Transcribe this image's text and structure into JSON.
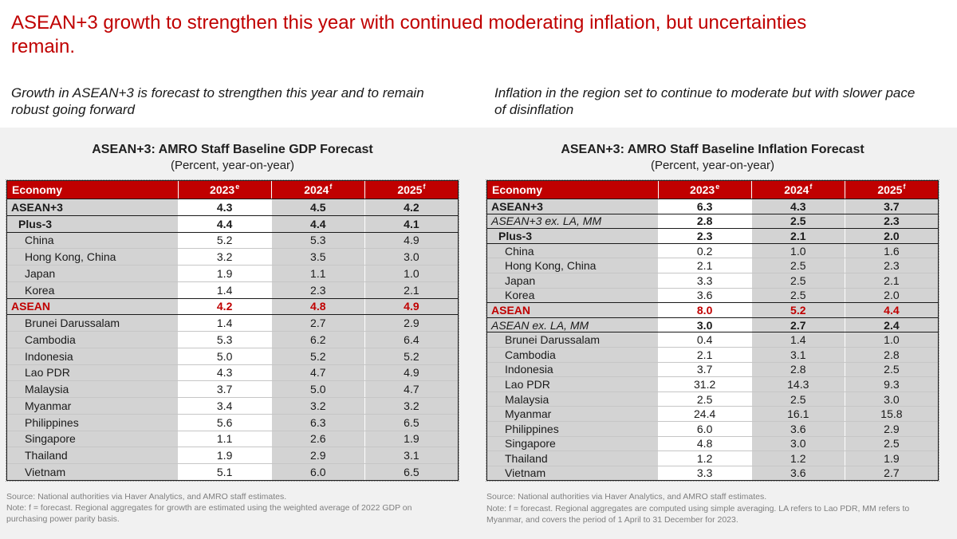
{
  "page": {
    "title": "ASEAN+3 growth to strengthen this year with continued moderating inflation, but uncertainties remain.",
    "accent_color": "#C00000",
    "band_color": "#F1F1F1",
    "cell_gray": "#D3D3D3"
  },
  "panels": [
    {
      "subtitle": "Growth in ASEAN+3 is forecast to strengthen this year and to remain robust going forward",
      "table_title": "ASEAN+3: AMRO Staff Baseline GDP Forecast",
      "table_subtitle": "(Percent, year-on-year)",
      "source": "Source: National authorities via Haver Analytics, and AMRO staff estimates.",
      "note": "Note: f = forecast. Regional aggregates for growth are estimated using the weighted average of 2022 GDP on purchasing power parity basis."
    },
    {
      "subtitle": "Inflation in the region set to continue to moderate but with slower pace of disinflation",
      "table_title": "ASEAN+3: AMRO Staff Baseline Inflation Forecast",
      "table_subtitle": "(Percent, year-on-year)",
      "source": "Source: National authorities via Haver Analytics, and AMRO staff estimates.",
      "note": "Note: f = forecast. Regional aggregates are computed using simple averaging. LA refers to Lao PDR, MM refers to Myanmar, and covers the period of 1 April to 31 December for 2023."
    }
  ],
  "tables": [
    {
      "id": "gdp-forecast",
      "columns": [
        {
          "label": "Economy",
          "sup": ""
        },
        {
          "label": "2023",
          "sup": "e"
        },
        {
          "label": "2024",
          "sup": "f"
        },
        {
          "label": "2025",
          "sup": "f"
        }
      ],
      "rows": [
        {
          "label": "ASEAN+3",
          "values": [
            "4.3",
            "4.5",
            "4.2"
          ],
          "style": "bold",
          "indent": 0,
          "sep": true
        },
        {
          "label": "Plus-3",
          "values": [
            "4.4",
            "4.4",
            "4.1"
          ],
          "style": "bold",
          "indent": 1,
          "sep": true
        },
        {
          "label": "China",
          "values": [
            "5.2",
            "5.3",
            "4.9"
          ],
          "style": "plain",
          "indent": 2,
          "sep": true
        },
        {
          "label": "Hong Kong, China",
          "values": [
            "3.2",
            "3.5",
            "3.0"
          ],
          "style": "plain",
          "indent": 2,
          "sep": false
        },
        {
          "label": "Japan",
          "values": [
            "1.9",
            "1.1",
            "1.0"
          ],
          "style": "plain",
          "indent": 2,
          "sep": false
        },
        {
          "label": "Korea",
          "values": [
            "1.4",
            "2.3",
            "2.1"
          ],
          "style": "plain",
          "indent": 2,
          "sep": false
        },
        {
          "label": "ASEAN",
          "values": [
            "4.2",
            "4.8",
            "4.9"
          ],
          "style": "red",
          "indent": 0,
          "sep": true
        },
        {
          "label": "Brunei Darussalam",
          "values": [
            "1.4",
            "2.7",
            "2.9"
          ],
          "style": "plain",
          "indent": 2,
          "sep": true
        },
        {
          "label": "Cambodia",
          "values": [
            "5.3",
            "6.2",
            "6.4"
          ],
          "style": "plain",
          "indent": 2,
          "sep": false
        },
        {
          "label": "Indonesia",
          "values": [
            "5.0",
            "5.2",
            "5.2"
          ],
          "style": "plain",
          "indent": 2,
          "sep": false
        },
        {
          "label": "Lao PDR",
          "values": [
            "4.3",
            "4.7",
            "4.9"
          ],
          "style": "plain",
          "indent": 2,
          "sep": false
        },
        {
          "label": "Malaysia",
          "values": [
            "3.7",
            "5.0",
            "4.7"
          ],
          "style": "plain",
          "indent": 2,
          "sep": false
        },
        {
          "label": "Myanmar",
          "values": [
            "3.4",
            "3.2",
            "3.2"
          ],
          "style": "plain",
          "indent": 2,
          "sep": false
        },
        {
          "label": "Philippines",
          "values": [
            "5.6",
            "6.3",
            "6.5"
          ],
          "style": "plain",
          "indent": 2,
          "sep": false
        },
        {
          "label": "Singapore",
          "values": [
            "1.1",
            "2.6",
            "1.9"
          ],
          "style": "plain",
          "indent": 2,
          "sep": false
        },
        {
          "label": "Thailand",
          "values": [
            "1.9",
            "2.9",
            "3.1"
          ],
          "style": "plain",
          "indent": 2,
          "sep": false
        },
        {
          "label": "Vietnam",
          "values": [
            "5.1",
            "6.0",
            "6.5"
          ],
          "style": "plain",
          "indent": 2,
          "sep": false
        }
      ]
    },
    {
      "id": "inflation-forecast",
      "columns": [
        {
          "label": "Economy",
          "sup": ""
        },
        {
          "label": "2023",
          "sup": "e"
        },
        {
          "label": "2024",
          "sup": "f"
        },
        {
          "label": "2025",
          "sup": "f"
        }
      ],
      "rows": [
        {
          "label": "ASEAN+3",
          "values": [
            "6.3",
            "4.3",
            "3.7"
          ],
          "style": "bold",
          "indent": 0,
          "sep": true
        },
        {
          "label": "ASEAN+3 ex. LA, MM",
          "values": [
            "2.8",
            "2.5",
            "2.3"
          ],
          "style": "italic",
          "indent": 0,
          "sep": true
        },
        {
          "label": "Plus-3",
          "values": [
            "2.3",
            "2.1",
            "2.0"
          ],
          "style": "bold",
          "indent": 1,
          "sep": true
        },
        {
          "label": "China",
          "values": [
            "0.2",
            "1.0",
            "1.6"
          ],
          "style": "plain",
          "indent": 2,
          "sep": true
        },
        {
          "label": "Hong Kong, China",
          "values": [
            "2.1",
            "2.5",
            "2.3"
          ],
          "style": "plain",
          "indent": 2,
          "sep": false
        },
        {
          "label": "Japan",
          "values": [
            "3.3",
            "2.5",
            "2.1"
          ],
          "style": "plain",
          "indent": 2,
          "sep": false
        },
        {
          "label": "Korea",
          "values": [
            "3.6",
            "2.5",
            "2.0"
          ],
          "style": "plain",
          "indent": 2,
          "sep": false
        },
        {
          "label": "ASEAN",
          "values": [
            "8.0",
            "5.2",
            "4.4"
          ],
          "style": "red",
          "indent": 0,
          "sep": true
        },
        {
          "label": "ASEAN ex. LA, MM",
          "values": [
            "3.0",
            "2.7",
            "2.4"
          ],
          "style": "italic",
          "indent": 0,
          "sep": true
        },
        {
          "label": "Brunei Darussalam",
          "values": [
            "0.4",
            "1.4",
            "1.0"
          ],
          "style": "plain",
          "indent": 2,
          "sep": true
        },
        {
          "label": "Cambodia",
          "values": [
            "2.1",
            "3.1",
            "2.8"
          ],
          "style": "plain",
          "indent": 2,
          "sep": false
        },
        {
          "label": "Indonesia",
          "values": [
            "3.7",
            "2.8",
            "2.5"
          ],
          "style": "plain",
          "indent": 2,
          "sep": false
        },
        {
          "label": "Lao PDR",
          "values": [
            "31.2",
            "14.3",
            "9.3"
          ],
          "style": "plain",
          "indent": 2,
          "sep": false
        },
        {
          "label": "Malaysia",
          "values": [
            "2.5",
            "2.5",
            "3.0"
          ],
          "style": "plain",
          "indent": 2,
          "sep": false
        },
        {
          "label": "Myanmar",
          "values": [
            "24.4",
            "16.1",
            "15.8"
          ],
          "style": "plain",
          "indent": 2,
          "sep": false
        },
        {
          "label": "Philippines",
          "values": [
            "6.0",
            "3.6",
            "2.9"
          ],
          "style": "plain",
          "indent": 2,
          "sep": false
        },
        {
          "label": "Singapore",
          "values": [
            "4.8",
            "3.0",
            "2.5"
          ],
          "style": "plain",
          "indent": 2,
          "sep": false
        },
        {
          "label": "Thailand",
          "values": [
            "1.2",
            "1.2",
            "1.9"
          ],
          "style": "plain",
          "indent": 2,
          "sep": false
        },
        {
          "label": "Vietnam",
          "values": [
            "3.3",
            "3.6",
            "2.7"
          ],
          "style": "plain",
          "indent": 2,
          "sep": false
        }
      ]
    }
  ]
}
